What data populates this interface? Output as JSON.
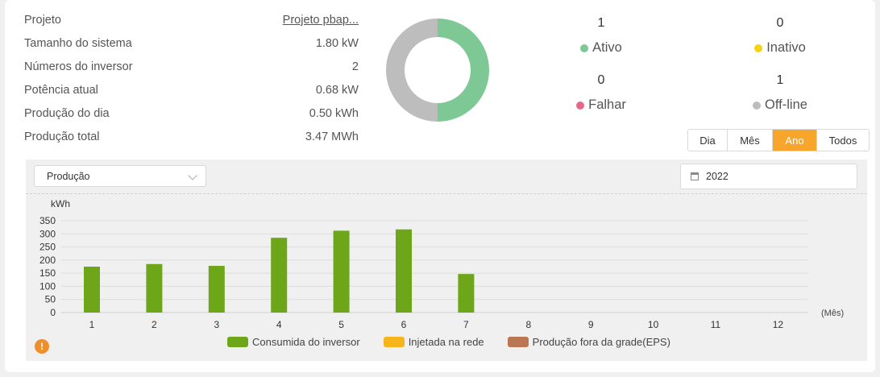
{
  "info": [
    {
      "label": "Projeto",
      "value": "Projeto pbap..."
    },
    {
      "label": "Tamanho do sistema",
      "value": "1.80 kW"
    },
    {
      "label": "Números do inversor",
      "value": "2"
    },
    {
      "label": "Potência atual",
      "value": "0.68 kW"
    },
    {
      "label": "Produção do dia",
      "value": "0.50 kWh"
    },
    {
      "label": "Produção total",
      "value": "3.47 MWh"
    }
  ],
  "donut": {
    "active": 1,
    "offline": 1,
    "active_color": "#7dc895",
    "offline_color": "#bdbdbd"
  },
  "stats": [
    {
      "count": "1",
      "label": "Ativo",
      "color": "#7dc895"
    },
    {
      "count": "0",
      "label": "Inativo",
      "color": "#f5d313"
    },
    {
      "count": "0",
      "label": "Falhar",
      "color": "#e8688b"
    },
    {
      "count": "1",
      "label": "Off-line",
      "color": "#bdbdbd"
    }
  ],
  "period_tabs": [
    {
      "label": "Dia",
      "active": false
    },
    {
      "label": "Mês",
      "active": false
    },
    {
      "label": "Ano",
      "active": true
    },
    {
      "label": "Todos",
      "active": false
    }
  ],
  "filter": {
    "metric": "Produção",
    "year": "2022"
  },
  "chart_data": {
    "type": "bar",
    "ylabel": "kWh",
    "xunit": "(Mês)",
    "categories": [
      "1",
      "2",
      "3",
      "4",
      "5",
      "6",
      "7",
      "8",
      "9",
      "10",
      "11",
      "12"
    ],
    "yticks": [
      0,
      50,
      100,
      150,
      200,
      250,
      300,
      350
    ],
    "ylim": [
      0,
      350
    ],
    "grid": true,
    "legend_position": "bottom",
    "series": [
      {
        "name": "Consumida do inversor",
        "color": "#6ea61a",
        "values": [
          175,
          185,
          178,
          285,
          312,
          317,
          147,
          0,
          0,
          0,
          0,
          0
        ]
      },
      {
        "name": "Injetada na rede",
        "color": "#f6b51c",
        "values": [
          0,
          0,
          0,
          0,
          0,
          0,
          0,
          0,
          0,
          0,
          0,
          0
        ]
      },
      {
        "name": "Produção fora da grade(EPS)",
        "color": "#bb7654",
        "values": [
          0,
          0,
          0,
          0,
          0,
          0,
          0,
          0,
          0,
          0,
          0,
          0
        ]
      }
    ]
  },
  "warning_icon": "!"
}
